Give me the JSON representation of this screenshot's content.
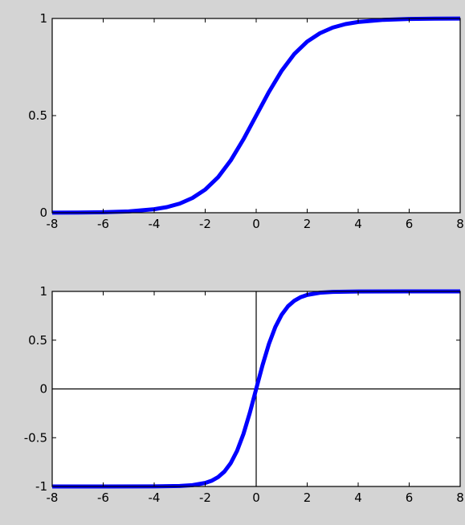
{
  "figure": {
    "background": "#d4d4d4",
    "axes_background": "#ffffff"
  },
  "chart_data": [
    {
      "type": "line",
      "title": "",
      "xlabel": "",
      "ylabel": "",
      "xlim": [
        -8,
        8
      ],
      "ylim": [
        0,
        1
      ],
      "xticks": [
        -8,
        -6,
        -4,
        -2,
        0,
        2,
        4,
        6,
        8
      ],
      "xtick_labels": [
        "-8",
        "-6",
        "-4",
        "-2",
        "0",
        "2",
        "4",
        "6",
        "8"
      ],
      "yticks": [
        0,
        0.5,
        1
      ],
      "ytick_labels": [
        "0",
        "0.5",
        "1"
      ],
      "grid": false,
      "reference_lines": [],
      "series": [
        {
          "color": "#0000ff",
          "x": [
            -8,
            -7,
            -6,
            -5,
            -4,
            -3.5,
            -3,
            -2.5,
            -2,
            -1.5,
            -1,
            -0.5,
            0,
            0.5,
            1,
            1.5,
            2,
            2.5,
            3,
            3.5,
            4,
            5,
            6,
            7,
            8
          ],
          "y": [
            0.0003,
            0.0009,
            0.0025,
            0.0067,
            0.018,
            0.029,
            0.047,
            0.076,
            0.119,
            0.182,
            0.269,
            0.378,
            0.5,
            0.622,
            0.731,
            0.818,
            0.881,
            0.924,
            0.953,
            0.971,
            0.982,
            0.993,
            0.9975,
            0.9991,
            0.9997
          ]
        }
      ]
    },
    {
      "type": "line",
      "title": "",
      "xlabel": "",
      "ylabel": "",
      "xlim": [
        -8,
        8
      ],
      "ylim": [
        -1,
        1
      ],
      "xticks": [
        -8,
        -6,
        -4,
        -2,
        0,
        2,
        4,
        6,
        8
      ],
      "xtick_labels": [
        "-8",
        "-6",
        "-4",
        "-2",
        "0",
        "2",
        "4",
        "6",
        "8"
      ],
      "yticks": [
        -1,
        -0.5,
        0,
        0.5,
        1
      ],
      "ytick_labels": [
        "-1",
        "-0.5",
        "0",
        "0.5",
        "1"
      ],
      "grid": false,
      "reference_lines": [
        {
          "axis": "x",
          "value": 0
        },
        {
          "axis": "y",
          "value": 0
        }
      ],
      "series": [
        {
          "color": "#0000ff",
          "x": [
            -8,
            -6,
            -4,
            -3,
            -2.5,
            -2,
            -1.75,
            -1.5,
            -1.25,
            -1,
            -0.75,
            -0.5,
            -0.25,
            0,
            0.25,
            0.5,
            0.75,
            1,
            1.25,
            1.5,
            1.75,
            2,
            2.5,
            3,
            4,
            6,
            8
          ],
          "y": [
            -1,
            -1,
            -0.9993,
            -0.995,
            -0.9866,
            -0.964,
            -0.9414,
            -0.905,
            -0.8483,
            -0.7616,
            -0.6351,
            -0.4621,
            -0.2449,
            0,
            0.2449,
            0.4621,
            0.6351,
            0.7616,
            0.8483,
            0.905,
            0.9414,
            0.964,
            0.9866,
            0.995,
            0.9993,
            1,
            1
          ]
        }
      ]
    }
  ]
}
